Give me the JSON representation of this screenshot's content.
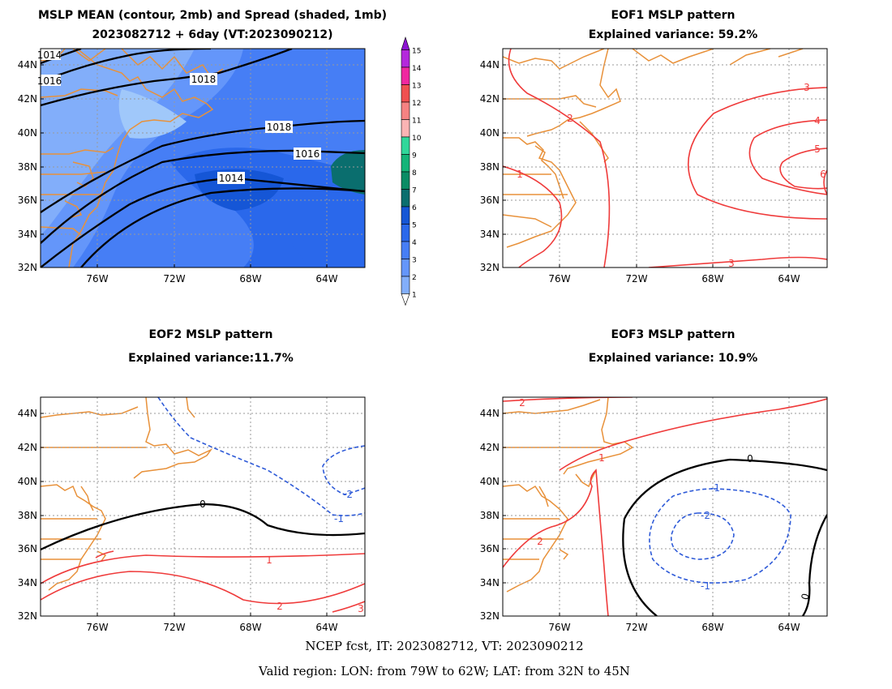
{
  "colors": {
    "coast": "#e8913a",
    "grid": "#999999",
    "positive": "#ef3b3b",
    "negative": "#2f5bd8",
    "zero": "#000000",
    "mean_contour": "#000000"
  },
  "panels": [
    {
      "title": "MSLP MEAN (contour, 2mb) and Spread (shaded, 1mb)",
      "subtitle": "2023082712 + 6day (VT:2023090212)",
      "contours": [
        {
          "label": "1014",
          "kind": "mean"
        },
        {
          "label": "1016",
          "kind": "mean"
        },
        {
          "label": "1018",
          "kind": "mean"
        },
        {
          "label": "1018",
          "kind": "mean"
        },
        {
          "label": "1016",
          "kind": "mean"
        },
        {
          "label": "1014",
          "kind": "mean"
        }
      ]
    },
    {
      "title": "EOF1 MSLP pattern",
      "subtitle": "Explained variance: 59.2%",
      "contours": [
        {
          "label": "1",
          "kind": "pos"
        },
        {
          "label": "2",
          "kind": "pos"
        },
        {
          "label": "3",
          "kind": "pos"
        },
        {
          "label": "4",
          "kind": "pos"
        },
        {
          "label": "5",
          "kind": "pos"
        },
        {
          "label": "6",
          "kind": "pos"
        },
        {
          "label": "3",
          "kind": "pos"
        }
      ]
    },
    {
      "title": "EOF2 MSLP pattern",
      "subtitle": "Explained variance:11.7%",
      "contours": [
        {
          "label": "0",
          "kind": "zero"
        },
        {
          "label": "-1",
          "kind": "neg"
        },
        {
          "label": "-2",
          "kind": "neg"
        },
        {
          "label": "1",
          "kind": "pos"
        },
        {
          "label": "2",
          "kind": "pos"
        },
        {
          "label": "3",
          "kind": "pos"
        }
      ]
    },
    {
      "title": "EOF3 MSLP pattern",
      "subtitle": "Explained variance: 10.9%",
      "contours": [
        {
          "label": "2",
          "kind": "pos"
        },
        {
          "label": "1",
          "kind": "pos"
        },
        {
          "label": "2",
          "kind": "pos"
        },
        {
          "label": "0",
          "kind": "zero"
        },
        {
          "label": "-1",
          "kind": "neg"
        },
        {
          "label": "-2",
          "kind": "neg"
        },
        {
          "label": "-1",
          "kind": "neg"
        },
        {
          "label": "0",
          "kind": "zero"
        }
      ]
    }
  ],
  "axes": {
    "lat_labels": [
      "44N",
      "42N",
      "40N",
      "38N",
      "36N",
      "34N",
      "32N"
    ],
    "lon_labels": [
      "76W",
      "72W",
      "68W",
      "64W"
    ]
  },
  "spread_colorbar": {
    "labels": [
      "1",
      "2",
      "3",
      "4",
      "5",
      "6",
      "7",
      "8",
      "9",
      "10",
      "11",
      "12",
      "13",
      "14",
      "15"
    ],
    "colors": [
      "#a0c8fa",
      "#82aefa",
      "#6496fa",
      "#467ef5",
      "#2a68eb",
      "#1556d6",
      "#0a6e6e",
      "#0a8c64",
      "#14b478",
      "#30d79a",
      "#fab4b4",
      "#f58282",
      "#f05050",
      "#f028a0",
      "#b428dc",
      "#8c14d2"
    ]
  },
  "footer": {
    "line1": "NCEP fcst, IT: 2023082712, VT: 2023090212",
    "line2": "Valid region: LON: from 79W to 62W; LAT: from 32N to 45N"
  }
}
